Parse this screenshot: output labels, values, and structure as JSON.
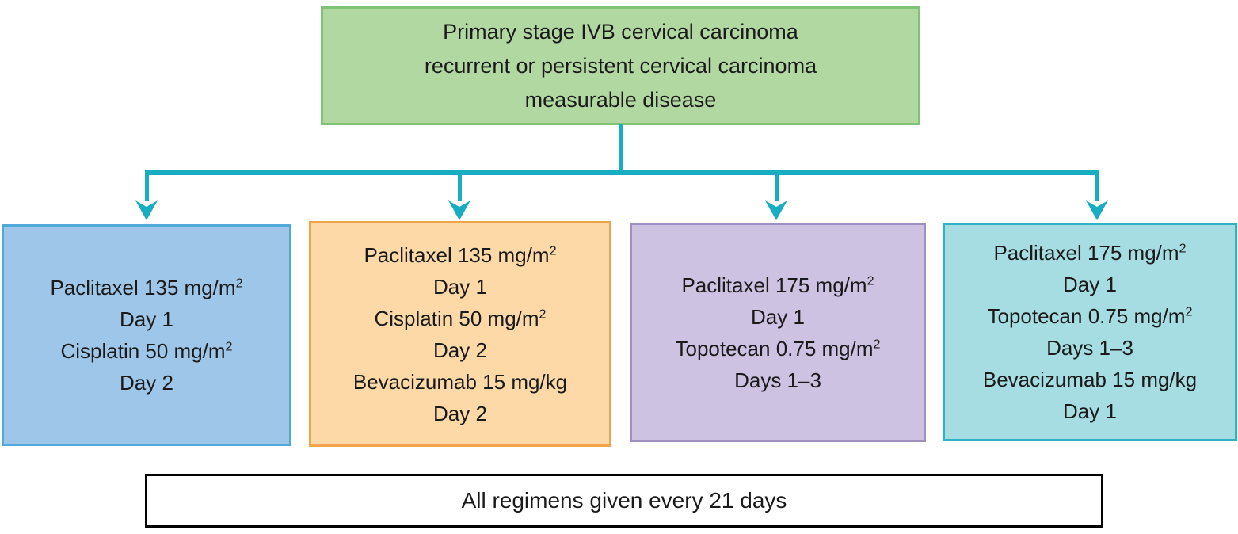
{
  "diagram": {
    "colors": {
      "connector": "#18adc1",
      "text": "#1a1a1a",
      "title_fill": "#b2d8a2",
      "title_border": "#7fc379",
      "footer_fill": "#ffffff",
      "footer_border": "#000000"
    },
    "title_box": {
      "lines": [
        "Primary stage IVB cervical carcinoma",
        "recurrent or persistent cervical carcinoma",
        "measurable disease"
      ]
    },
    "regimen_boxes": [
      {
        "id": "paclitaxel-cisplatin",
        "fill": "#9dc6e8",
        "border": "#4fa9d9",
        "lines": [
          {
            "text": "Paclitaxel 135 mg/m",
            "sup": "2"
          },
          {
            "text": "Day 1"
          },
          {
            "text": "Cisplatin 50 mg/m",
            "sup": "2"
          },
          {
            "text": "Day 2"
          }
        ]
      },
      {
        "id": "paclitaxel-cisplatin-bevacizumab",
        "fill": "#fcd9a7",
        "border": "#f2a44c",
        "lines": [
          {
            "text": "Paclitaxel 135 mg/m",
            "sup": "2"
          },
          {
            "text": "Day 1"
          },
          {
            "text": "Cisplatin 50 mg/m",
            "sup": "2"
          },
          {
            "text": "Day 2"
          },
          {
            "text": "Bevacizumab 15 mg/kg"
          },
          {
            "text": "Day 2"
          }
        ]
      },
      {
        "id": "paclitaxel-topotecan",
        "fill": "#cec2e2",
        "border": "#9e90bf",
        "lines": [
          {
            "text": "Paclitaxel 175 mg/m",
            "sup": "2"
          },
          {
            "text": "Day 1"
          },
          {
            "text": "Topotecan 0.75 mg/m",
            "sup": "2"
          },
          {
            "text": "Days 1–3"
          }
        ]
      },
      {
        "id": "paclitaxel-topotecan-bevacizumab",
        "fill": "#a6dde2",
        "border": "#2cb3c4",
        "lines": [
          {
            "text": "Paclitaxel 175 mg/m",
            "sup": "2"
          },
          {
            "text": "Day 1"
          },
          {
            "text": "Topotecan 0.75 mg/m",
            "sup": "2"
          },
          {
            "text": "Days 1–3"
          },
          {
            "text": "Bevacizumab 15 mg/kg"
          },
          {
            "text": "Day 1"
          }
        ]
      }
    ],
    "footer_box": {
      "text": "All regimens given every 21 days"
    }
  }
}
